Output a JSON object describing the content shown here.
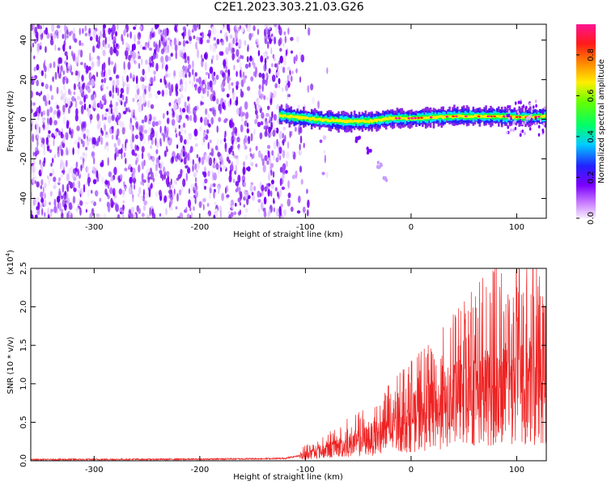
{
  "title": "C2E1.2023.303.21.03.G26",
  "colors": {
    "snr_line": "#ee2222",
    "axis": "#000000",
    "noise_purple": "#7a1ff0",
    "colormap": [
      "#f8f0ff",
      "#c87cff",
      "#7b00ff",
      "#2b17ff",
      "#00e5ff",
      "#00ff22",
      "#ccff00",
      "#ffcc00",
      "#ff4400",
      "#ff0066",
      "#ff1493"
    ]
  },
  "chart_data": [
    {
      "type": "heatmap",
      "xlabel": "Height of straight line (km)",
      "ylabel": "Frequency (Hz)",
      "xlim": [
        -360,
        128
      ],
      "ylim": [
        -50,
        48
      ],
      "x_ticks": [
        "-300",
        "-200",
        "-100",
        "0",
        "100"
      ],
      "y_ticks": [
        "40",
        "20",
        "0",
        "-20",
        "-40"
      ],
      "colorbar": {
        "label": "Normalized spectral amplitude",
        "range": [
          0,
          0.95
        ],
        "ticks": [
          "0.0",
          "0.2",
          "0.4",
          "0.6",
          "0.8"
        ]
      },
      "noise_region_x": [
        -360,
        -100
      ],
      "signal_track": {
        "x_start": -125,
        "x_end": 128,
        "center_points": [
          [
            -125,
            2
          ],
          [
            -100,
            0.5
          ],
          [
            -80,
            -0.5
          ],
          [
            -60,
            -1
          ],
          [
            -40,
            -1
          ],
          [
            -20,
            0.5
          ],
          [
            0,
            0.5
          ],
          [
            40,
            1.5
          ],
          [
            80,
            1.5
          ],
          [
            110,
            1
          ],
          [
            128,
            1.5
          ]
        ]
      },
      "secondary_streak": {
        "points": [
          [
            -60,
            -5
          ],
          [
            -50,
            -10
          ],
          [
            -40,
            -16
          ],
          [
            -30,
            -23
          ],
          [
            -25,
            -30
          ]
        ]
      }
    },
    {
      "type": "line",
      "xlabel": "Height of straight line (km)",
      "ylabel": "SNR (10 * v/v)",
      "multiplier_label": "(x10",
      "multiplier_exp": "4",
      "multiplier_close": ")",
      "xlim": [
        -360,
        128
      ],
      "ylim": [
        0,
        2.5
      ],
      "x_ticks": [
        "-300",
        "-200",
        "-100",
        "0",
        "100"
      ],
      "y_ticks": [
        "0.0",
        "0.5",
        "1.0",
        "1.5",
        "2.0",
        "2.5"
      ],
      "series": [
        {
          "envelope": [
            [
              -360,
              0.03
            ],
            [
              -200,
              0.04
            ],
            [
              -120,
              0.06
            ],
            [
              -100,
              0.2
            ],
            [
              -80,
              0.35
            ],
            [
              -60,
              0.55
            ],
            [
              -40,
              0.7
            ],
            [
              -20,
              1.0
            ],
            [
              0,
              1.3
            ],
            [
              20,
              1.55
            ],
            [
              40,
              1.9
            ],
            [
              60,
              2.3
            ],
            [
              80,
              2.5
            ],
            [
              100,
              2.5
            ],
            [
              128,
              2.5
            ]
          ],
          "mean": [
            [
              -360,
              0.015
            ],
            [
              -200,
              0.02
            ],
            [
              -120,
              0.03
            ],
            [
              -100,
              0.08
            ],
            [
              -80,
              0.15
            ],
            [
              -60,
              0.22
            ],
            [
              -40,
              0.3
            ],
            [
              -20,
              0.4
            ],
            [
              0,
              0.55
            ],
            [
              20,
              0.65
            ],
            [
              40,
              0.8
            ],
            [
              60,
              0.9
            ],
            [
              80,
              0.95
            ],
            [
              100,
              1.0
            ],
            [
              128,
              1.0
            ]
          ]
        }
      ]
    }
  ]
}
